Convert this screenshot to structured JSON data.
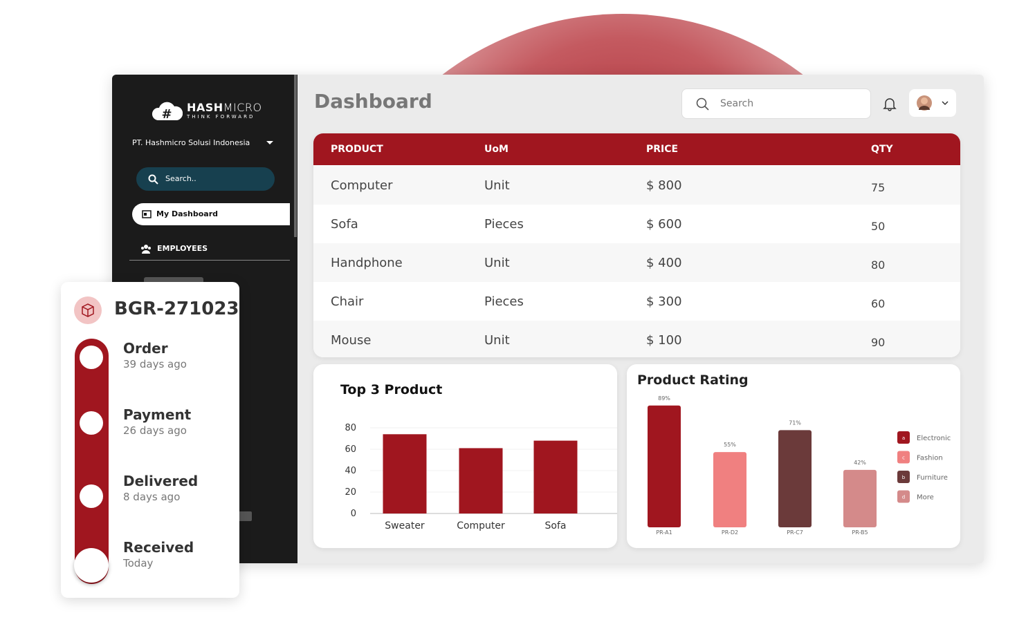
{
  "sidebar": {
    "brand_bold": "HASH",
    "brand_light": "MICRO",
    "tagline": "THINK FORWARD",
    "company": "PT. Hashmicro Solusi Indonesia",
    "search": "Search..",
    "menu": [
      "My Dashboard",
      "EMPLOYEES"
    ]
  },
  "header": {
    "title": "Dashboard",
    "search": "Search"
  },
  "table": {
    "columns": [
      "PRODUCT",
      "UoM",
      "PRICE",
      "QTY"
    ],
    "rows": [
      [
        "Computer",
        "Unit",
        "$ 800",
        75
      ],
      [
        "Sofa",
        "Pieces",
        "$ 600",
        50
      ],
      [
        "Handphone",
        "Unit",
        "$ 400",
        80
      ],
      [
        "Chair",
        "Pieces",
        "$ 300",
        60
      ],
      [
        "Mouse",
        "Unit",
        "$ 100",
        90
      ]
    ]
  },
  "tracking": {
    "id": "BGR-271023",
    "steps": [
      {
        "label": "Order",
        "time": "39 days ago"
      },
      {
        "label": "Payment",
        "time": "26 days ago"
      },
      {
        "label": "Delivered",
        "time": "8 days ago"
      },
      {
        "label": "Received",
        "time": "Today"
      }
    ]
  },
  "chart_data": [
    {
      "type": "bar",
      "title": "Top 3 Product",
      "categories": [
        "Sweater",
        "Computer",
        "Sofa"
      ],
      "values": [
        74,
        61,
        68
      ],
      "color": "#a0161f",
      "ylim": [
        0,
        80
      ],
      "yticks": [
        0,
        20,
        40,
        60,
        80
      ],
      "grid": true
    },
    {
      "type": "bar",
      "title": "Product Rating",
      "categories": [
        "PR-A1",
        "PR-D2",
        "PR-C7",
        "PR-B5"
      ],
      "values": [
        89,
        55,
        71,
        42
      ],
      "value_labels": [
        "89%",
        "55%",
        "71%",
        "42%"
      ],
      "colors": [
        "#a0161f",
        "#f08080",
        "#6b3a3a",
        "#d48a8a"
      ],
      "ylim": [
        0,
        100
      ],
      "legend": {
        "position": "right",
        "items": [
          {
            "key": "a",
            "name": "Electronic",
            "color": "#a0161f"
          },
          {
            "key": "c",
            "name": "Fashion",
            "color": "#f08080"
          },
          {
            "key": "b",
            "name": "Furniture",
            "color": "#6b3a3a"
          },
          {
            "key": "d",
            "name": "More",
            "color": "#d48a8a"
          }
        ]
      }
    }
  ]
}
